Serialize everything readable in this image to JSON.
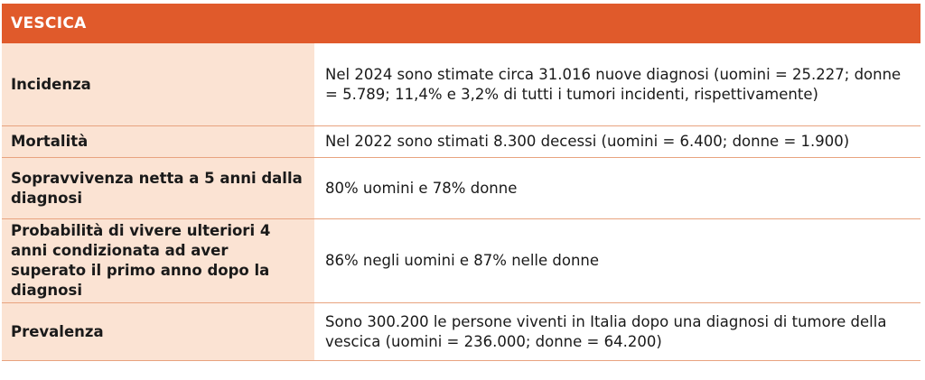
{
  "title": "VESCICA",
  "rows": [
    {
      "label": "Incidenza",
      "value": "Nel 2024 sono stimate circa 31.016 nuove diagnosi (uomini = 25.227; donne = 5.789; 11,4% e 3,2% di tutti i tumori incidenti, rispettivamente)"
    },
    {
      "label": "Mortalità",
      "value": "Nel 2022 sono stimati 8.300 decessi (uomini = 6.400; donne = 1.900)"
    },
    {
      "label": "Sopravvivenza netta a 5 anni dalla diagnosi",
      "value": "80% uomini e 78% donne"
    },
    {
      "label": "Probabilità di vivere ulteriori 4 anni condizionata ad aver superato il primo anno dopo la diagnosi",
      "value": "86% negli uomini e 87% nelle donne"
    },
    {
      "label": "Prevalenza",
      "value": "Sono 300.200 le persone viventi in Italia dopo una diagnosi di tumore della vescica (uomini = 236.000; donne = 64.200)"
    }
  ],
  "colors": {
    "header_bg": "#e05a2b",
    "label_bg": "#fbe3d3",
    "divider": "#e8a37f"
  }
}
